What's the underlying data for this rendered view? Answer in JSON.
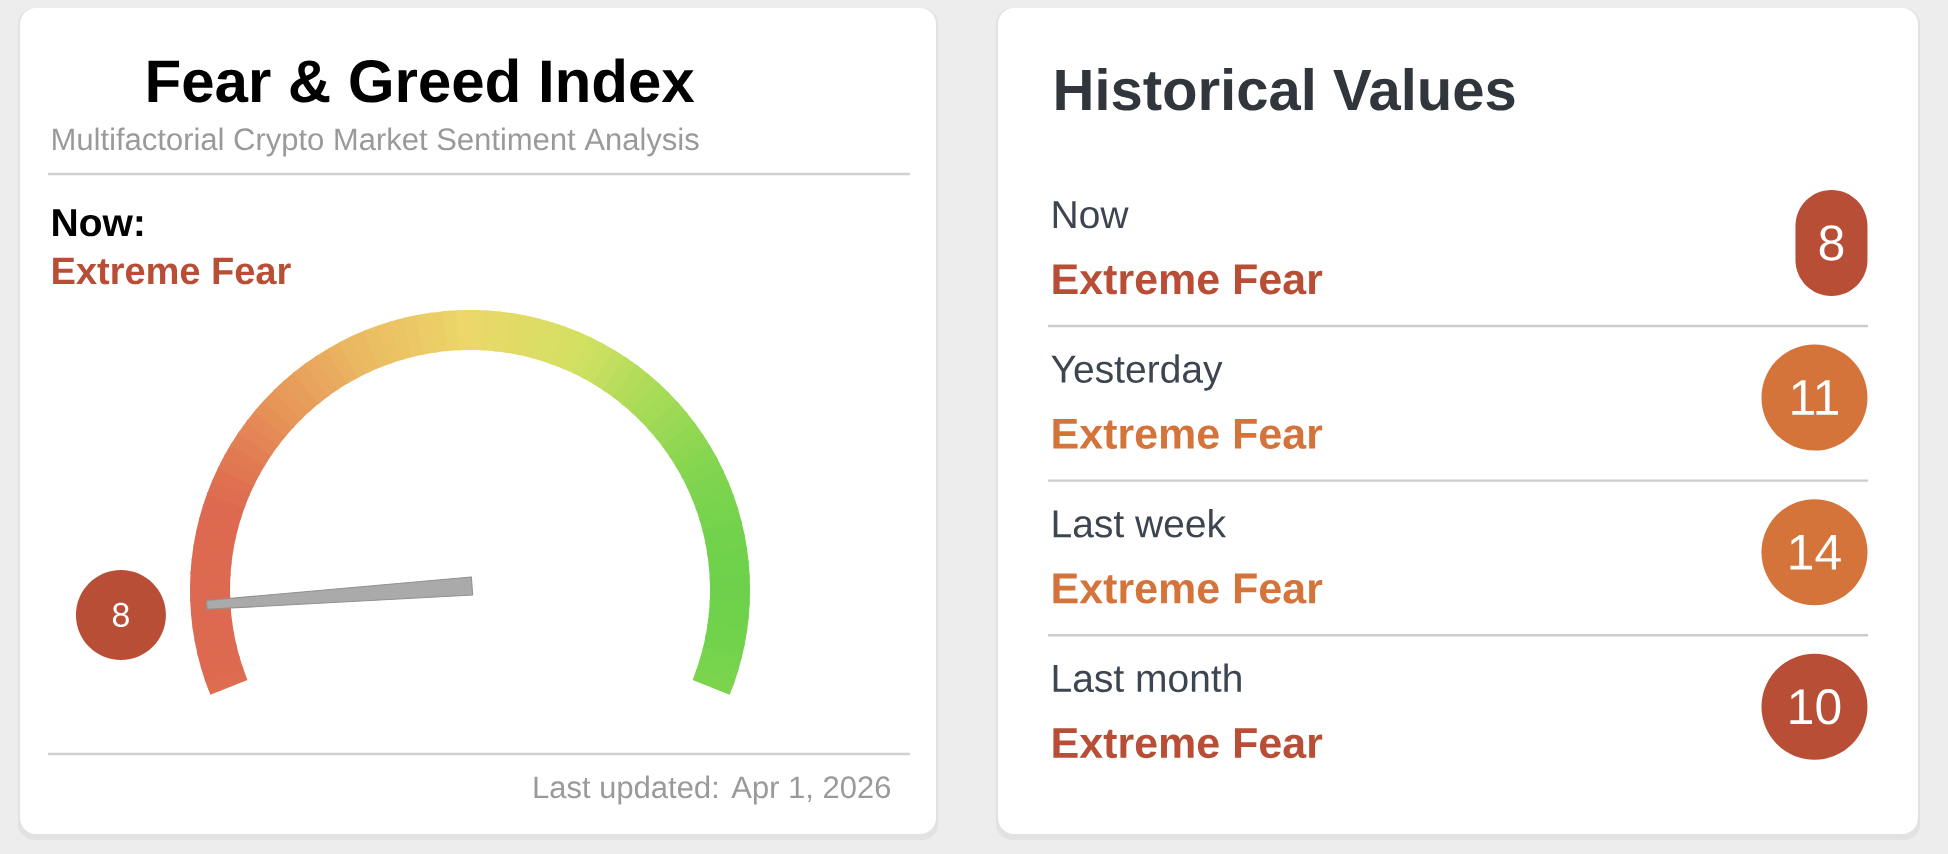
{
  "chart_data": [
    {
      "type": "other",
      "title": "Fear & Greed Index",
      "subtitle": "Multifactorial Crypto Market Sentiment Analysis",
      "values": [
        8
      ],
      "data_labels": true,
      "annotations": [
        "Now:",
        "Extreme Fear",
        "Last updated: Apr 1, 2026"
      ]
    },
    {
      "type": "other",
      "title": "Historical Values",
      "categories": [
        "Now",
        "Yesterday",
        "Last week",
        "Last month"
      ],
      "values": [
        8,
        11,
        14,
        10
      ],
      "data_labels": true,
      "annotations": [
        "Extreme Fear",
        "Extreme Fear",
        "Extreme Fear",
        "Extreme Fear"
      ]
    }
  ]
}
